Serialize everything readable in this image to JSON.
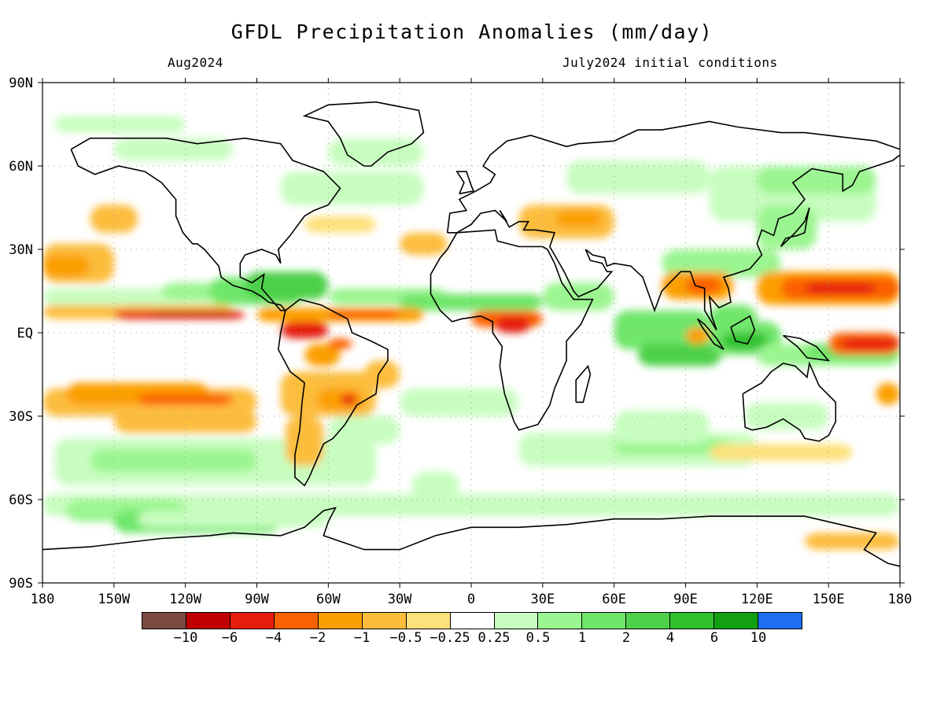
{
  "title": "GFDL Precipitation Anomalies (mm/day)",
  "valid_month": "Aug2024",
  "init_label": "July2024 initial conditions",
  "map": {
    "projection": "equirectangular",
    "lon_range": [
      -180,
      180
    ],
    "lat_range": [
      -90,
      90
    ],
    "lat_ticks": [
      "90N",
      "60N",
      "30N",
      "EQ",
      "30S",
      "60S",
      "90S"
    ],
    "lon_ticks": [
      "180",
      "150W",
      "120W",
      "90W",
      "60W",
      "30W",
      "0",
      "30E",
      "60E",
      "90E",
      "120E",
      "150E",
      "180"
    ],
    "grid": "dotted"
  },
  "colorbar": {
    "colors": [
      "#7a4a40",
      "#c00000",
      "#e61c0f",
      "#fb6100",
      "#fc9f00",
      "#fcbd3d",
      "#fde17a",
      "#ffffff",
      "#c8fdc0",
      "#9bf590",
      "#6fe66a",
      "#4ed04a",
      "#2fc12e",
      "#12a012",
      "#1e6ef0"
    ],
    "labels": [
      "-10",
      "-6",
      "-4",
      "-2",
      "-1",
      "-0.5",
      "-0.25",
      "0.25",
      "0.5",
      "1",
      "2",
      "4",
      "6",
      "10"
    ]
  }
}
